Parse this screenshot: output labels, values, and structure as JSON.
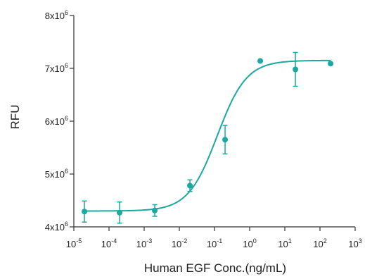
{
  "chart_data": {
    "type": "scatter",
    "title": "",
    "xlabel": "Human EGF Conc.(ng/mL)",
    "ylabel": "RFU",
    "x_scale": "log",
    "xlim": [
      1e-05,
      1000
    ],
    "ylim": [
      4000000,
      8000000
    ],
    "grid": false,
    "legend": "none",
    "colors": {
      "series": "#1aa8a0",
      "axis": "#333333",
      "text": "#222222"
    },
    "x_ticks": [
      {
        "base": "10",
        "exp": "-5",
        "value": 1e-05
      },
      {
        "base": "10",
        "exp": "-4",
        "value": 0.0001
      },
      {
        "base": "10",
        "exp": "-3",
        "value": 0.001
      },
      {
        "base": "10",
        "exp": "-2",
        "value": 0.01
      },
      {
        "base": "10",
        "exp": "-1",
        "value": 0.1
      },
      {
        "base": "10",
        "exp": "0",
        "value": 1
      },
      {
        "base": "10",
        "exp": "1",
        "value": 10
      },
      {
        "base": "10",
        "exp": "2",
        "value": 100
      },
      {
        "base": "10",
        "exp": "3",
        "value": 1000
      }
    ],
    "y_ticks": [
      {
        "base": "4x10",
        "exp": "6",
        "value": 4000000
      },
      {
        "base": "5x10",
        "exp": "6",
        "value": 5000000
      },
      {
        "base": "6x10",
        "exp": "6",
        "value": 6000000
      },
      {
        "base": "7x10",
        "exp": "6",
        "value": 7000000
      },
      {
        "base": "8x10",
        "exp": "6",
        "value": 8000000
      }
    ],
    "points": [
      {
        "x": 2e-05,
        "y": 4290000,
        "err": 200000
      },
      {
        "x": 0.0002,
        "y": 4270000,
        "err": 200000
      },
      {
        "x": 0.002,
        "y": 4310000,
        "err": 110000
      },
      {
        "x": 0.02,
        "y": 4780000,
        "err": 110000
      },
      {
        "x": 0.2,
        "y": 5650000,
        "err": 270000
      },
      {
        "x": 2,
        "y": 7140000,
        "err": 0
      },
      {
        "x": 20,
        "y": 6980000,
        "err": 320000
      },
      {
        "x": 200,
        "y": 7090000,
        "err": 0
      }
    ],
    "fit_curve": {
      "model": "4PL",
      "bottom": 4300000,
      "top": 7150000,
      "ec50": 0.12,
      "hill": 1.05
    }
  }
}
